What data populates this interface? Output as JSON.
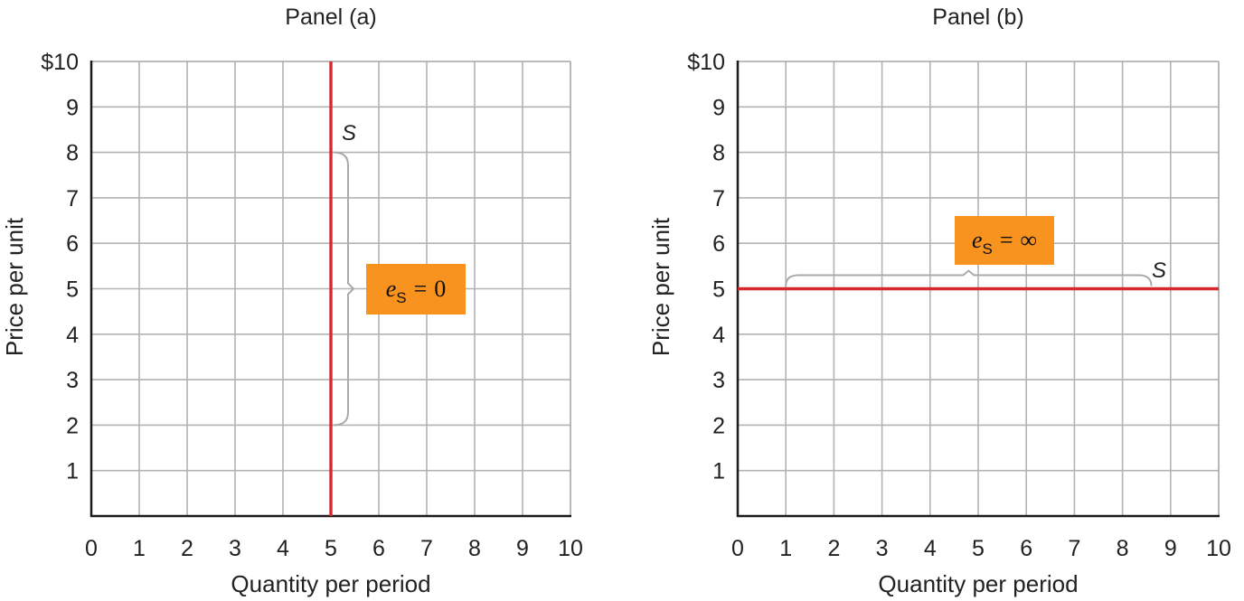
{
  "chart_data": [
    {
      "type": "line",
      "title": "Panel (a)",
      "xlabel": "Quantity per period",
      "ylabel": "Price per unit",
      "xlim": [
        0,
        10
      ],
      "ylim": [
        0,
        10
      ],
      "grid": true,
      "x_ticks": [
        "0",
        "1",
        "2",
        "3",
        "4",
        "5",
        "6",
        "7",
        "8",
        "9",
        "10"
      ],
      "y_ticks": [
        "1",
        "2",
        "3",
        "4",
        "5",
        "6",
        "7",
        "8",
        "9",
        "$10"
      ],
      "series": [
        {
          "name": "S",
          "color": "#d7282f",
          "points": [
            [
              5,
              0
            ],
            [
              5,
              10
            ]
          ]
        }
      ],
      "bracket": {
        "orientation": "vertical",
        "at": 5,
        "from": 2,
        "to": 8
      },
      "annotation": {
        "symbol": "e",
        "subscript": "S",
        "relation": "=",
        "value": "0",
        "color": "#f7931e"
      }
    },
    {
      "type": "line",
      "title": "Panel (b)",
      "xlabel": "Quantity per period",
      "ylabel": "Price per unit",
      "xlim": [
        0,
        10
      ],
      "ylim": [
        0,
        10
      ],
      "grid": true,
      "x_ticks": [
        "0",
        "1",
        "2",
        "3",
        "4",
        "5",
        "6",
        "7",
        "8",
        "9",
        "10"
      ],
      "y_ticks": [
        "1",
        "2",
        "3",
        "4",
        "5",
        "6",
        "7",
        "8",
        "9",
        "$10"
      ],
      "series": [
        {
          "name": "S",
          "color": "#d7282f",
          "points": [
            [
              0,
              5
            ],
            [
              10,
              5
            ]
          ]
        }
      ],
      "bracket": {
        "orientation": "horizontal",
        "at": 5,
        "from": 1,
        "to": 8.6
      },
      "annotation": {
        "symbol": "e",
        "subscript": "S",
        "relation": "=",
        "value": "∞",
        "color": "#f7931e"
      }
    }
  ]
}
